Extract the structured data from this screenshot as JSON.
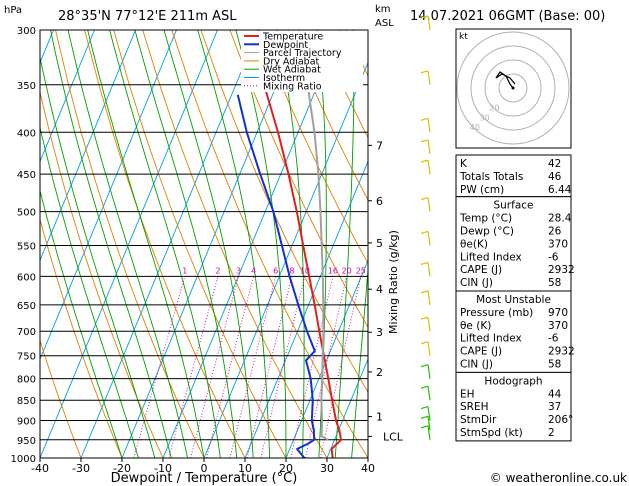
{
  "header": {
    "units_p": "hPa",
    "location": "28°35'N  77°12'E  211m  ASL",
    "units_km": "km",
    "units_asl": "ASL",
    "valid_time": "14.07.2021  06GMT  (Base: 00)"
  },
  "footer": {
    "credit": "© weatheronline.co.uk"
  },
  "colors": {
    "temperature": "#e02020",
    "dewpoint": "#1030d0",
    "parcel": "#a0a0a0",
    "dry_adiabat": "#e08000",
    "wet_adiabat": "#00a000",
    "isotherm": "#00a0e0",
    "mixing_ratio": "#d000a0"
  },
  "chart_data": {
    "type": "line",
    "title": "",
    "xlabel": "Dewpoint / Temperature (°C)",
    "ylabel": "",
    "y2label": "Mixing Ratio (g/kg)",
    "xlim": [
      -40,
      40
    ],
    "x_ticks": [
      "-40",
      "-30",
      "-20",
      "-10",
      "0",
      "10",
      "20",
      "30",
      "40"
    ],
    "pressure_levels": [
      300,
      350,
      400,
      450,
      500,
      550,
      600,
      650,
      700,
      750,
      800,
      850,
      900,
      950,
      1000
    ],
    "pressure_labels": [
      "300",
      "350",
      "400",
      "450",
      "500",
      "550",
      "600",
      "650",
      "700",
      "750",
      "800",
      "850",
      "900",
      "950",
      "1000"
    ],
    "km_labels": [
      {
        "label": "7",
        "p": 415
      },
      {
        "label": "6",
        "p": 485
      },
      {
        "label": "5",
        "p": 546
      },
      {
        "label": "4",
        "p": 622
      },
      {
        "label": "3",
        "p": 702
      },
      {
        "label": "2",
        "p": 785
      },
      {
        "label": "1",
        "p": 890
      },
      {
        "label": "LCL",
        "p": 941
      }
    ],
    "mixing_ratio_labels": [
      "1",
      "2",
      "3",
      "4",
      "6",
      "8",
      "10",
      "16",
      "20",
      "25"
    ],
    "legend": [
      "Temperature",
      "Dewpoint",
      "Parcel Trajectory",
      "Dry Adiabat",
      "Wet Adiabat",
      "Isotherm",
      "Mixing Ratio"
    ],
    "series": [
      {
        "name": "Temperature",
        "points": [
          [
            1000,
            31.4
          ],
          [
            975,
            30.2
          ],
          [
            950,
            31.6
          ],
          [
            925,
            30.2
          ],
          [
            900,
            28.4
          ],
          [
            850,
            25.4
          ],
          [
            800,
            22.3
          ],
          [
            750,
            18.9
          ],
          [
            700,
            15.3
          ],
          [
            650,
            11.5
          ],
          [
            600,
            7.3
          ],
          [
            550,
            2.7
          ],
          [
            500,
            -2.3
          ],
          [
            450,
            -8.1
          ],
          [
            400,
            -14.9
          ],
          [
            350,
            -23.1
          ]
        ]
      },
      {
        "name": "Dewpoint",
        "points": [
          [
            1000,
            24.5
          ],
          [
            975,
            21.8
          ],
          [
            960,
            24.0
          ],
          [
            950,
            25.0
          ],
          [
            925,
            24.0
          ],
          [
            900,
            22.5
          ],
          [
            850,
            20.7
          ],
          [
            800,
            18.0
          ],
          [
            760,
            15.0
          ],
          [
            740,
            16.2
          ],
          [
            700,
            12.3
          ],
          [
            650,
            7.5
          ],
          [
            600,
            2.5
          ],
          [
            550,
            -2.5
          ],
          [
            500,
            -8.0
          ],
          [
            450,
            -15.0
          ],
          [
            400,
            -22.5
          ],
          [
            360,
            -28.5
          ]
        ]
      },
      {
        "name": "Parcel Trajectory",
        "points": [
          [
            950,
            28.4
          ],
          [
            941,
            26.5
          ],
          [
            900,
            25.0
          ],
          [
            850,
            22.8
          ],
          [
            800,
            20.8
          ],
          [
            750,
            18.6
          ],
          [
            700,
            16.3
          ],
          [
            650,
            13.6
          ],
          [
            600,
            10.6
          ],
          [
            550,
            7.2
          ],
          [
            500,
            3.5
          ],
          [
            450,
            -0.8
          ],
          [
            400,
            -6.0
          ],
          [
            350,
            -12.5
          ]
        ]
      }
    ],
    "hodograph": {
      "rings": [
        "10",
        "20",
        "30",
        "40"
      ],
      "label": "kt"
    },
    "indices": [
      {
        "label": "K",
        "value": "42"
      },
      {
        "label": "Totals Totals",
        "value": "46"
      },
      {
        "label": "PW (cm)",
        "value": "6.44"
      }
    ],
    "surface": {
      "title": "Surface",
      "rows": [
        {
          "label": "Temp (°C)",
          "value": "28.4"
        },
        {
          "label": "Dewp (°C)",
          "value": "26"
        },
        {
          "label": "θe(K)",
          "value": "370"
        },
        {
          "label": "Lifted Index",
          "value": "-6"
        },
        {
          "label": "CAPE (J)",
          "value": "2932"
        },
        {
          "label": "CIN (J)",
          "value": "58"
        }
      ]
    },
    "most_unstable": {
      "title": "Most Unstable",
      "rows": [
        {
          "label": "Pressure (mb)",
          "value": "970"
        },
        {
          "label": "θe (K)",
          "value": "370"
        },
        {
          "label": "Lifted Index",
          "value": "-6"
        },
        {
          "label": "CAPE (J)",
          "value": "2932"
        },
        {
          "label": "CIN (J)",
          "value": "58"
        }
      ]
    },
    "hodograph_table": {
      "title": "Hodograph",
      "rows": [
        {
          "label": "EH",
          "value": "44"
        },
        {
          "label": "SREH",
          "value": "37"
        },
        {
          "label": "StmDir",
          "value": "206°"
        },
        {
          "label": "StmSpd (kt)",
          "value": "2"
        }
      ]
    }
  }
}
